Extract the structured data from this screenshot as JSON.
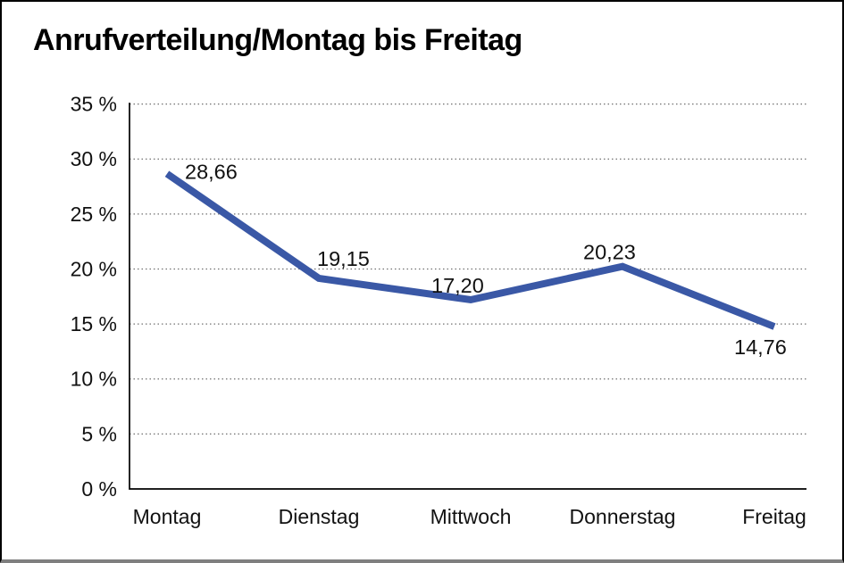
{
  "title": "Anrufverteilung/Montag bis Freitag",
  "chart_data": {
    "type": "line",
    "title": "Anrufverteilung/Montag bis Freitag",
    "categories": [
      "Montag",
      "Dienstag",
      "Mittwoch",
      "Donnerstag",
      "Freitag"
    ],
    "values": [
      28.66,
      19.15,
      17.2,
      20.23,
      14.76
    ],
    "point_labels": [
      "28,66",
      "19,15",
      "17,20",
      "20,23",
      "14,76"
    ],
    "y_tick_labels": [
      "0 %",
      "5 %",
      "10 %",
      "15 %",
      "20 %",
      "25 %",
      "30 %",
      "35 %"
    ],
    "ylim": [
      0,
      35
    ],
    "y_tick_step": 5,
    "xlabel": "",
    "ylabel": "",
    "grid": "horizontal-dotted",
    "legend": "none",
    "colors": {
      "line": "#3A58A6",
      "grid": "#707070",
      "axis": "#000000",
      "text": "#111111",
      "frame": "#000000",
      "frame_bottom": "#7f7f7f",
      "background": "#ffffff"
    }
  }
}
